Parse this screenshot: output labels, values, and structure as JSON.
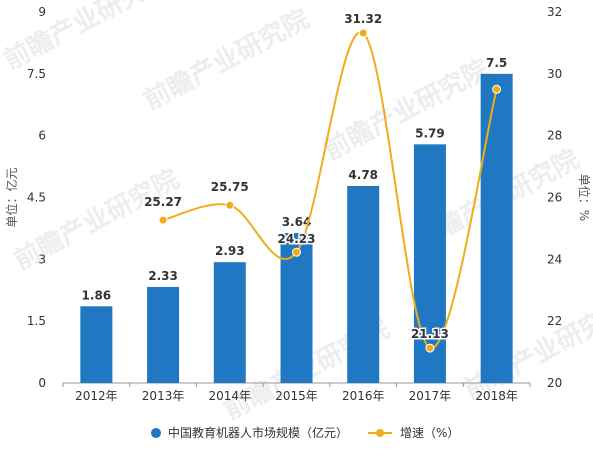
{
  "chart_data": {
    "type": "bar",
    "categories": [
      "2012年",
      "2013年",
      "2014年",
      "2015年",
      "2016年",
      "2017年",
      "2018年"
    ],
    "series": [
      {
        "name": "中国教育机器人市场规模（亿元）",
        "type": "bar",
        "axis": "left",
        "values": [
          1.86,
          2.33,
          2.93,
          3.64,
          4.78,
          5.79,
          7.5
        ],
        "labels": [
          "1.86",
          "2.33",
          "2.93",
          "3.64",
          "4.78",
          "5.79",
          "7.5"
        ],
        "color": "#1f78c1"
      },
      {
        "name": "增速（%）",
        "type": "line",
        "axis": "right",
        "smooth": true,
        "values": [
          null,
          25.27,
          25.75,
          24.23,
          31.32,
          21.13,
          29.5
        ],
        "labels": [
          null,
          "25.27",
          "25.75",
          "24.23",
          "31.32",
          "21.13",
          null
        ],
        "color": "#f2ab1c"
      }
    ],
    "y_left": {
      "label": "单位：亿元",
      "ylim": [
        0,
        9
      ],
      "ticks": [
        "0",
        "1.5",
        "3",
        "4.5",
        "6",
        "7.5",
        "9"
      ]
    },
    "y_right": {
      "label": "单位：%",
      "ylim": [
        20,
        32
      ],
      "ticks": [
        "20",
        "22",
        "24",
        "26",
        "28",
        "30",
        "32"
      ]
    },
    "grid": false,
    "legend": {
      "position": "bottom-center"
    },
    "watermark": "前瞻产业研究院"
  }
}
